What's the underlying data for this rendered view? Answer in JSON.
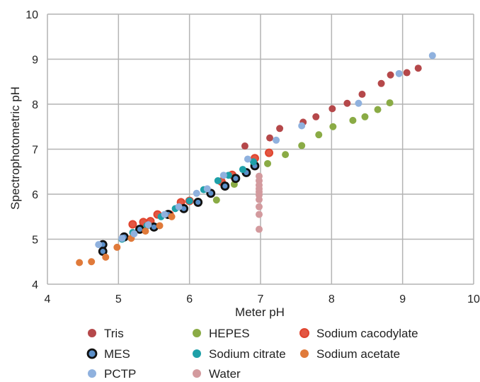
{
  "chart_data": {
    "type": "scatter",
    "xlabel": "Meter pH",
    "ylabel": "Spectrophotometric pH",
    "xlim": [
      4,
      10
    ],
    "ylim": [
      4,
      10
    ],
    "xticks": [
      4,
      5,
      6,
      7,
      8,
      9,
      10
    ],
    "yticks": [
      4,
      5,
      6,
      7,
      8,
      9,
      10
    ],
    "grid": true,
    "legend_position": "bottom",
    "series": [
      {
        "name": "Tris",
        "color": "#b5484a",
        "marker": "filled",
        "x": [
          6.78,
          7.13,
          7.27,
          7.6,
          7.78,
          8.01,
          8.22,
          8.43,
          8.7,
          8.83,
          9.06,
          9.22
        ],
        "y": [
          7.07,
          7.25,
          7.46,
          7.6,
          7.72,
          7.9,
          8.02,
          8.22,
          8.46,
          8.65,
          8.7,
          8.8
        ]
      },
      {
        "name": "HEPES",
        "color": "#8aab45",
        "marker": "filled",
        "x": [
          6.38,
          6.63,
          7.1,
          7.35,
          7.58,
          7.82,
          8.02,
          8.3,
          8.47,
          8.65,
          8.82
        ],
        "y": [
          5.87,
          6.22,
          6.68,
          6.88,
          7.08,
          7.32,
          7.5,
          7.64,
          7.72,
          7.88,
          8.03
        ]
      },
      {
        "name": "Sodium cacodylate",
        "color": "#e0452f",
        "marker": "filled-ring",
        "x": [
          5.2,
          5.35,
          5.45,
          5.55,
          5.72,
          5.88,
          6.0,
          6.45,
          6.6,
          6.92,
          7.12
        ],
        "y": [
          5.33,
          5.38,
          5.4,
          5.55,
          5.55,
          5.82,
          5.85,
          6.28,
          6.43,
          6.8,
          6.92
        ]
      },
      {
        "name": "MES",
        "color": "#5b8fc9",
        "marker": "black-ring",
        "x": [
          4.78,
          4.78,
          5.08,
          5.3,
          5.5,
          5.7,
          5.92,
          6.12,
          6.3,
          6.5,
          6.65,
          6.8,
          6.92
        ],
        "y": [
          4.88,
          4.73,
          5.05,
          5.22,
          5.27,
          5.55,
          5.68,
          5.82,
          6.02,
          6.18,
          6.35,
          6.48,
          6.63
        ]
      },
      {
        "name": "Sodium citrate",
        "color": "#1ea0a8",
        "marker": "filled",
        "x": [
          5.05,
          5.2,
          5.4,
          5.6,
          5.8,
          6.0,
          6.2,
          6.4,
          6.55,
          6.75,
          6.9
        ],
        "y": [
          5.0,
          5.15,
          5.3,
          5.5,
          5.68,
          5.85,
          6.1,
          6.3,
          6.42,
          6.55,
          6.72
        ]
      },
      {
        "name": "Sodium acetate",
        "color": "#e07a3a",
        "marker": "filled",
        "x": [
          4.45,
          4.62,
          4.82,
          4.98,
          5.18,
          5.38,
          5.58,
          5.75
        ],
        "y": [
          4.48,
          4.5,
          4.6,
          4.82,
          5.02,
          5.18,
          5.3,
          5.5
        ]
      },
      {
        "name": "PCTP",
        "color": "#8fb1de",
        "marker": "filled",
        "x": [
          4.72,
          5.05,
          5.22,
          5.42,
          5.65,
          5.85,
          6.1,
          6.25,
          6.48,
          6.82,
          7.22,
          7.58,
          8.38,
          8.95,
          9.42
        ],
        "y": [
          4.88,
          5.02,
          5.12,
          5.32,
          5.55,
          5.72,
          6.02,
          6.12,
          6.42,
          6.78,
          7.2,
          7.52,
          8.02,
          8.68,
          9.08
        ]
      },
      {
        "name": "Water",
        "color": "#d39a9e",
        "marker": "filled",
        "x": [
          6.98,
          6.98,
          6.98,
          6.98,
          6.98,
          6.98,
          6.98,
          6.98,
          6.98,
          6.98
        ],
        "y": [
          5.22,
          5.55,
          5.72,
          5.88,
          5.98,
          6.05,
          6.12,
          6.2,
          6.3,
          6.4
        ]
      }
    ]
  }
}
